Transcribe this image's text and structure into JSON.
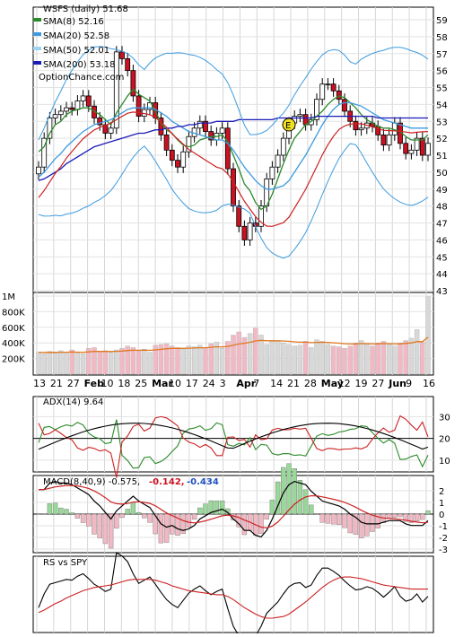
{
  "title": "WSFS (daily) 51.68",
  "brand": "OptionChance.com",
  "legend": [
    {
      "label": "SMA(8) 52.16",
      "color": "#2a8a2a"
    },
    {
      "label": "SMA(20) 52.58",
      "color": "#3c9be0"
    },
    {
      "label": "SMA(50) 52.01",
      "color": "#9fd3f5"
    },
    {
      "label": "SMA(200) 53.18",
      "color": "#1a1ab8"
    }
  ],
  "event_marker": "E",
  "price_panel": {
    "ylim": [
      43,
      59
    ],
    "yticks": [
      "59",
      "58",
      "57",
      "56",
      "55",
      "54",
      "53",
      "52",
      "51",
      "50",
      "49",
      "48",
      "47",
      "46",
      "45",
      "44",
      "43"
    ]
  },
  "volume_panel": {
    "ylim": [
      0,
      1000000
    ],
    "yticks": [
      "1M",
      "800K",
      "600K",
      "400K",
      "200K"
    ]
  },
  "x_axis": {
    "labels": [
      "13",
      "21",
      "27",
      "Feb",
      "10",
      "18",
      "25",
      "Mar",
      "10",
      "17",
      "24",
      "3",
      "Apr",
      "7",
      "14",
      "21",
      "28",
      "May",
      "12",
      "19",
      "27",
      "Jun",
      "9",
      "16"
    ]
  },
  "adx_panel": {
    "label": "ADX(14) 9.64",
    "yticks": [
      "30",
      "20",
      "10"
    ]
  },
  "macd_panel": {
    "label": "MACD(8,40,9) -0.575,",
    "value2": "-0.142,",
    "value3": "-0.434",
    "yticks": [
      "2",
      "1",
      "0",
      "-1",
      "-2",
      "-3"
    ]
  },
  "rs_panel": {
    "label": "RS vs SPY"
  },
  "colors": {
    "up": "#ffffff",
    "down": "#cc1122",
    "wick": "#000000",
    "sma8": "#2a8a2a",
    "sma20": "#3c9be0",
    "sma50": "#e8c81a",
    "sma200": "#1a1ab8",
    "bollinger": "#3c9be0",
    "sma_red": "#cc2222",
    "volume_up": "#d8d8d8",
    "volume_down": "#f2b8c4",
    "volume_avg": "#e07820",
    "macd_pos": "#98d898",
    "macd_neg": "#f2b8c4",
    "adx_plus": "#2a8a2a",
    "adx_minus": "#cc2222"
  },
  "chart_data": [
    {
      "type": "line",
      "title": "WSFS (daily) 51.68",
      "ylim": [
        43,
        59
      ],
      "series": [
        {
          "name": "Close",
          "values": [
            50.3,
            52.0,
            53.2,
            53.4,
            53.6,
            53.8,
            53.7,
            54.2,
            54.5,
            53.9,
            53.2,
            52.8,
            52.3,
            52.6,
            57.1,
            56.7,
            56.0,
            54.5,
            53.3,
            53.7,
            54.1,
            53.2,
            52.2,
            51.3,
            50.7,
            50.3,
            51.2,
            52.1,
            52.6,
            53.0,
            52.4,
            51.9,
            52.3,
            52.6,
            50.2,
            48.0,
            46.8,
            46.0,
            47.0,
            46.8,
            48.0,
            49.6,
            50.3,
            51.0,
            52.0,
            52.9,
            53.3,
            53.4,
            52.8,
            53.1,
            54.3,
            55.2,
            55.2,
            54.8,
            54.3,
            53.6,
            53.0,
            52.5,
            52.6,
            52.9,
            52.7,
            52.2,
            51.6,
            52.2,
            52.9,
            51.7,
            51.1,
            51.3,
            52.0,
            51.0,
            51.7
          ]
        },
        {
          "name": "SMA(8) 52.16",
          "values": [
            51.2,
            51.5,
            52.3,
            52.8,
            53.0,
            53.4,
            53.6,
            53.7,
            53.8,
            53.8,
            53.6,
            53.4,
            53.1,
            52.8,
            53.5,
            54.0,
            54.5,
            54.9,
            54.6,
            54.4,
            54.2,
            53.6,
            52.9,
            52.5,
            52.3,
            51.9,
            51.6,
            51.5,
            51.6,
            51.9,
            52.0,
            52.1,
            52.1,
            52.2,
            51.8,
            51.0,
            50.2,
            49.3,
            48.9,
            48.2,
            47.8,
            48.0,
            48.7,
            49.6,
            50.5,
            51.3,
            52.0,
            52.4,
            52.8,
            53.0,
            53.3,
            53.6,
            54.0,
            54.3,
            54.5,
            54.4,
            54.1,
            53.8,
            53.4,
            53.1,
            52.9,
            52.7,
            52.6,
            52.6,
            52.5,
            52.4,
            52.1,
            51.9,
            51.9,
            51.9,
            52.2
          ]
        },
        {
          "name": "SMA(20) 52.58",
          "values": [
            49.7,
            50.0,
            50.4,
            50.8,
            51.1,
            51.5,
            51.8,
            52.1,
            52.4,
            52.6,
            52.8,
            52.9,
            53.0,
            53.1,
            53.3,
            53.5,
            53.7,
            53.8,
            53.8,
            53.8,
            53.8,
            53.7,
            53.5,
            53.3,
            53.0,
            52.8,
            52.6,
            52.4,
            52.3,
            52.2,
            52.1,
            52.0,
            51.9,
            51.9,
            51.7,
            51.3,
            50.8,
            50.3,
            49.9,
            49.5,
            49.2,
            49.0,
            49.0,
            49.1,
            49.2,
            49.5,
            50.0,
            50.5,
            51.0,
            51.6,
            52.2,
            52.8,
            53.3,
            53.7,
            54.0,
            54.1,
            54.1,
            54.0,
            53.9,
            53.7,
            53.5,
            53.3,
            53.1,
            53.0,
            52.9,
            52.8,
            52.7,
            52.6,
            52.6,
            52.6,
            52.6
          ]
        },
        {
          "name": "SMA(200) 53.18",
          "values": [
            49.5,
            49.6,
            49.8,
            50.0,
            50.2,
            50.5,
            50.7,
            50.9,
            51.1,
            51.3,
            51.5,
            51.6,
            51.7,
            51.8,
            51.9,
            52.0,
            52.1,
            52.2,
            52.3,
            52.3,
            52.4,
            52.5,
            52.5,
            52.6,
            52.6,
            52.7,
            52.7,
            52.8,
            52.8,
            52.9,
            52.9,
            52.9,
            53.0,
            53.0,
            53.0,
            53.0,
            53.1,
            53.1,
            53.1,
            53.1,
            53.1,
            53.1,
            53.1,
            53.2,
            53.2,
            53.2,
            53.2,
            53.2,
            53.2,
            53.2,
            53.3,
            53.3,
            53.3,
            53.3,
            53.3,
            53.3,
            53.3,
            53.3,
            53.3,
            53.3,
            53.3,
            53.2,
            53.2,
            53.2,
            53.2,
            53.2,
            53.2,
            53.2,
            53.2,
            53.2,
            53.2
          ]
        }
      ]
    },
    {
      "type": "bar",
      "title": "Volume",
      "ylim": [
        0,
        1000000
      ],
      "values": [
        280000,
        260000,
        290000,
        270000,
        300000,
        280000,
        310000,
        270000,
        260000,
        330000,
        340000,
        290000,
        300000,
        280000,
        310000,
        330000,
        360000,
        340000,
        300000,
        320000,
        280000,
        370000,
        380000,
        390000,
        360000,
        340000,
        330000,
        360000,
        350000,
        370000,
        340000,
        390000,
        410000,
        330000,
        420000,
        500000,
        540000,
        470000,
        520000,
        590000,
        500000,
        380000,
        420000,
        430000,
        400000,
        380000,
        360000,
        370000,
        420000,
        340000,
        440000,
        420000,
        380000,
        360000,
        350000,
        330000,
        360000,
        400000,
        430000,
        380000,
        360000,
        400000,
        420000,
        380000,
        360000,
        400000,
        430000,
        460000,
        570000,
        410000,
        990000
      ]
    }
  ]
}
